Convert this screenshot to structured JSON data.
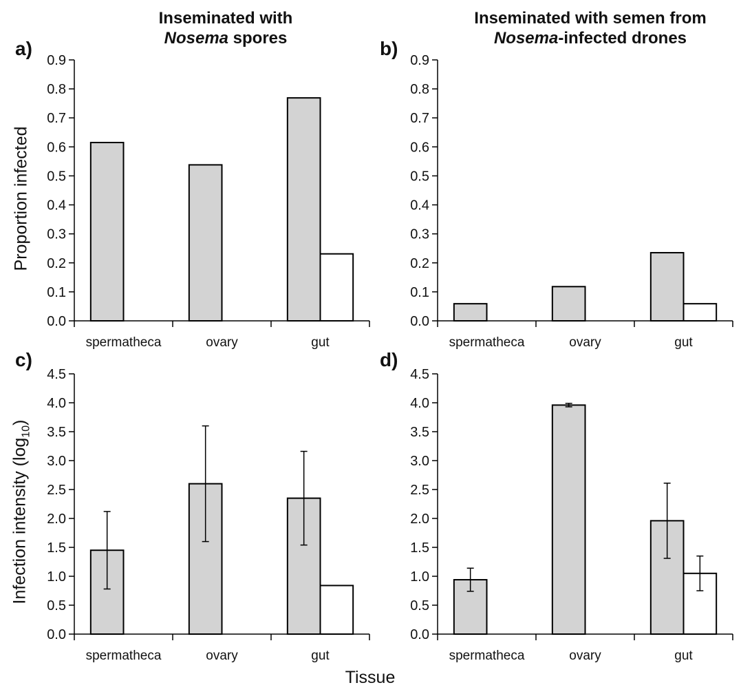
{
  "column_titles": {
    "left_line1": "Inseminated with",
    "left_italic": "Nosema",
    "left_rest": " spores",
    "right_line1": "Inseminated with semen from",
    "right_italic": "Nosema",
    "right_rest": "-infected drones"
  },
  "y_labels": {
    "top": "Proportion infected",
    "bottom_main": "Infection intensity (log",
    "bottom_sub": "10",
    "bottom_end": ")"
  },
  "x_label": "Tissue",
  "colors": {
    "grey_bar": "#d3d3d3",
    "white_bar": "#ffffff",
    "stroke": "#000000"
  },
  "chart_data": [
    {
      "panel": "a)",
      "type": "bar",
      "categories": [
        "spermatheca",
        "ovary",
        "gut"
      ],
      "series": [
        {
          "values": [
            0.615,
            0.538,
            0.769
          ],
          "color": "#d3d3d3"
        },
        {
          "values": [
            0,
            0,
            0.231
          ],
          "color": "#ffffff"
        }
      ],
      "ylim": [
        0,
        0.9
      ],
      "yticks": [
        "0.0",
        "0.1",
        "0.2",
        "0.3",
        "0.4",
        "0.5",
        "0.6",
        "0.7",
        "0.8",
        "0.9"
      ]
    },
    {
      "panel": "b)",
      "type": "bar",
      "categories": [
        "spermatheca",
        "ovary",
        "gut"
      ],
      "series": [
        {
          "values": [
            0.059,
            0.118,
            0.235
          ],
          "color": "#d3d3d3"
        },
        {
          "values": [
            0,
            0,
            0.059
          ],
          "color": "#ffffff"
        }
      ],
      "ylim": [
        0,
        0.9
      ],
      "yticks": [
        "0.0",
        "0.1",
        "0.2",
        "0.3",
        "0.4",
        "0.5",
        "0.6",
        "0.7",
        "0.8",
        "0.9"
      ]
    },
    {
      "panel": "c)",
      "type": "bar",
      "categories": [
        "spermatheca",
        "ovary",
        "gut"
      ],
      "series": [
        {
          "values": [
            1.45,
            2.6,
            2.35
          ],
          "errors": [
            0.67,
            1.0,
            0.81
          ],
          "color": "#d3d3d3"
        },
        {
          "values": [
            0,
            0,
            0.84
          ],
          "errors": [
            0,
            0,
            0
          ],
          "color": "#ffffff"
        }
      ],
      "ylim": [
        0,
        4.5
      ],
      "yticks": [
        "0.0",
        "0.5",
        "1.0",
        "1.5",
        "2.0",
        "2.5",
        "3.0",
        "3.5",
        "4.0",
        "4.5"
      ]
    },
    {
      "panel": "d)",
      "type": "bar",
      "categories": [
        "spermatheca",
        "ovary",
        "gut"
      ],
      "series": [
        {
          "values": [
            0.94,
            3.96,
            1.96
          ],
          "errors": [
            0.2,
            0.03,
            0.65
          ],
          "color": "#d3d3d3"
        },
        {
          "values": [
            0,
            0,
            1.05
          ],
          "errors": [
            0,
            0,
            0.3
          ],
          "color": "#ffffff"
        }
      ],
      "ylim": [
        0,
        4.5
      ],
      "yticks": [
        "0.0",
        "0.5",
        "1.0",
        "1.5",
        "2.0",
        "2.5",
        "3.0",
        "3.5",
        "4.0",
        "4.5"
      ]
    }
  ]
}
